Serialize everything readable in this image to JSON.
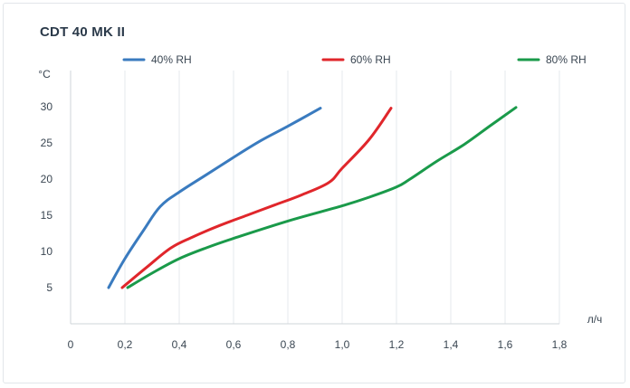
{
  "title": "CDT 40 MK II",
  "chart_data": {
    "type": "line",
    "title": "CDT 40 MK II",
    "xlabel": "л/ч",
    "ylabel": "°C",
    "xlim": [
      0,
      1.8
    ],
    "ylim": [
      0,
      35
    ],
    "x_ticks": [
      "0",
      "0,2",
      "0,4",
      "0,6",
      "0,8",
      "1,0",
      "1,2",
      "1,4",
      "1,6",
      "1,8"
    ],
    "x_tick_values": [
      0,
      0.2,
      0.4,
      0.6,
      0.8,
      1.0,
      1.2,
      1.4,
      1.6,
      1.8
    ],
    "y_ticks": [
      "5",
      "10",
      "15",
      "20",
      "25",
      "30"
    ],
    "y_tick_values": [
      5,
      10,
      15,
      20,
      25,
      30
    ],
    "grid": "vertical",
    "legend_position": "top",
    "series": [
      {
        "name": "40% RH",
        "color": "#3a7bbf",
        "points": [
          [
            0.14,
            5
          ],
          [
            0.2,
            9
          ],
          [
            0.27,
            13
          ],
          [
            0.33,
            16.2
          ],
          [
            0.4,
            18.2
          ],
          [
            0.5,
            20.6
          ],
          [
            0.6,
            23.0
          ],
          [
            0.7,
            25.3
          ],
          [
            0.8,
            27.3
          ],
          [
            0.92,
            29.8
          ]
        ]
      },
      {
        "name": "60% RH",
        "color": "#e0262b",
        "points": [
          [
            0.19,
            5
          ],
          [
            0.28,
            7.8
          ],
          [
            0.37,
            10.5
          ],
          [
            0.45,
            12.0
          ],
          [
            0.55,
            13.6
          ],
          [
            0.65,
            15.0
          ],
          [
            0.75,
            16.4
          ],
          [
            0.85,
            17.8
          ],
          [
            0.95,
            19.5
          ],
          [
            1.0,
            21.5
          ],
          [
            1.1,
            25.5
          ],
          [
            1.18,
            29.8
          ]
        ]
      },
      {
        "name": "80% RH",
        "color": "#1a9a4a",
        "points": [
          [
            0.21,
            5
          ],
          [
            0.3,
            7.0
          ],
          [
            0.4,
            9.0
          ],
          [
            0.5,
            10.5
          ],
          [
            0.6,
            11.8
          ],
          [
            0.8,
            14.2
          ],
          [
            1.0,
            16.3
          ],
          [
            1.1,
            17.5
          ],
          [
            1.2,
            18.9
          ],
          [
            1.25,
            20.0
          ],
          [
            1.35,
            22.5
          ],
          [
            1.45,
            24.8
          ],
          [
            1.55,
            27.5
          ],
          [
            1.64,
            29.9
          ]
        ]
      }
    ]
  }
}
